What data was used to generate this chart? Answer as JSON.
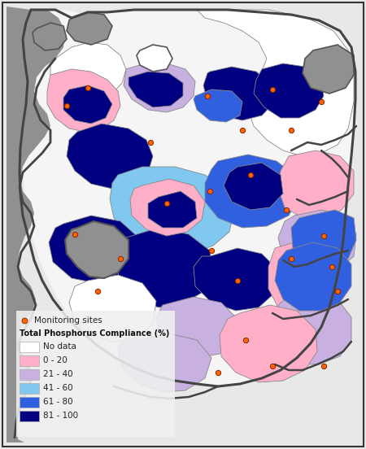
{
  "background_color": "#e8e8e8",
  "map_bg_color": "#f5f5f5",
  "coast_color": "#555555",
  "region_edge_color": "#888888",
  "region_edge_lw": 0.6,
  "outer_edge_lw": 2.0,
  "legend_title": "Total Phosphorus Compliance (%)",
  "legend_marker_label": "Monitoring sites",
  "legend_marker_color": "#FF6600",
  "legend_marker_edge": "#8B2000",
  "colors": {
    "no_data": "#ffffff",
    "c0_20": "#ffb0c8",
    "c21_40": "#c8b0e0",
    "c41_60": "#80c8f0",
    "c61_80": "#3060e0",
    "c81_100": "#000080"
  },
  "legend_labels": [
    "No data",
    "0 - 20",
    "21 - 40",
    "41 - 60",
    "61 - 80",
    "81 - 100"
  ],
  "legend_colors": [
    "#ffffff",
    "#ffb0c8",
    "#c8b0e0",
    "#80c8f0",
    "#3060e0",
    "#000080"
  ],
  "fig_width": 4.5,
  "fig_height": 5.52,
  "dpi": 100
}
